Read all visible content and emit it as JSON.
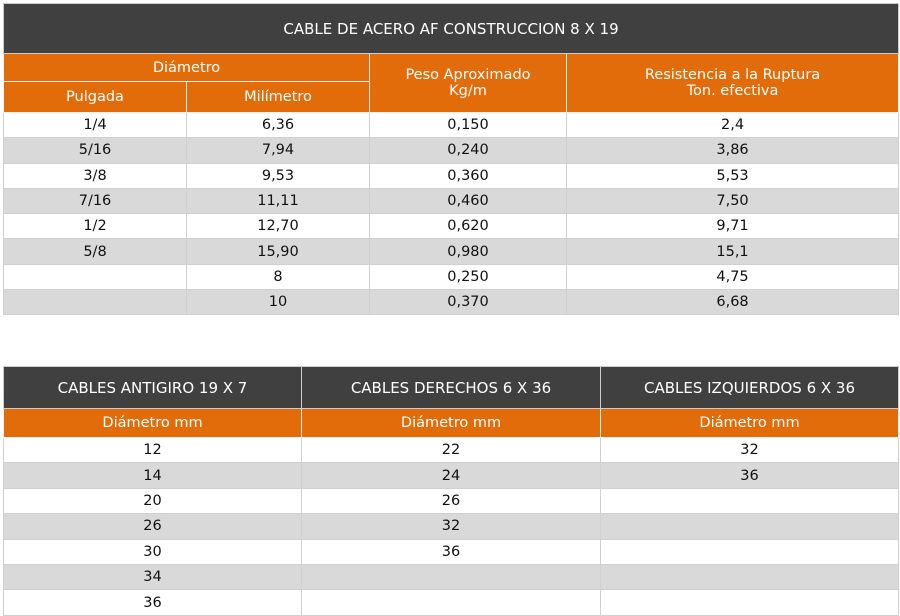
{
  "table1": {
    "title": "CABLE DE ACERO AF CONSTRUCCION 8 X 19",
    "diametro": "Diámetro",
    "pulgada": "Pulgada",
    "milimetro": "Milímetro",
    "peso_1": "Peso Aproximado",
    "peso_2": "Kg/m",
    "res_1": "Resistencia a la Ruptura",
    "res_2": "Ton. efectiva",
    "rows": [
      [
        "1/4",
        "6,36",
        "0,150",
        "2,4"
      ],
      [
        "5/16",
        "7,94",
        "0,240",
        "3,86"
      ],
      [
        "3/8",
        "9,53",
        "0,360",
        "5,53"
      ],
      [
        "7/16",
        "11,11",
        "0,460",
        "7,50"
      ],
      [
        "1/2",
        "12,70",
        "0,620",
        "9,71"
      ],
      [
        "5/8",
        "15,90",
        "0,980",
        "15,1"
      ],
      [
        "",
        "8",
        "0,250",
        "4,75"
      ],
      [
        "",
        "10",
        "0,370",
        "6,68"
      ]
    ]
  },
  "table2": {
    "titles": [
      "CABLES ANTIGIRO 19 X 7",
      "CABLES DERECHOS 6 X 36",
      "CABLES IZQUIERDOS 6 X 36"
    ],
    "headers": [
      "Diámetro  mm",
      "Diámetro mm",
      "Diámetro mm"
    ],
    "rows": [
      [
        "12",
        "22",
        "32"
      ],
      [
        "14",
        "24",
        "36"
      ],
      [
        "20",
        "26",
        ""
      ],
      [
        "26",
        "32",
        ""
      ],
      [
        "30",
        "36",
        ""
      ],
      [
        "34",
        "",
        ""
      ],
      [
        "36",
        "",
        ""
      ]
    ]
  },
  "colors": {
    "title_bg": "#404040",
    "header_bg": "#E36C0A",
    "stripe": "#D9D9D9"
  }
}
